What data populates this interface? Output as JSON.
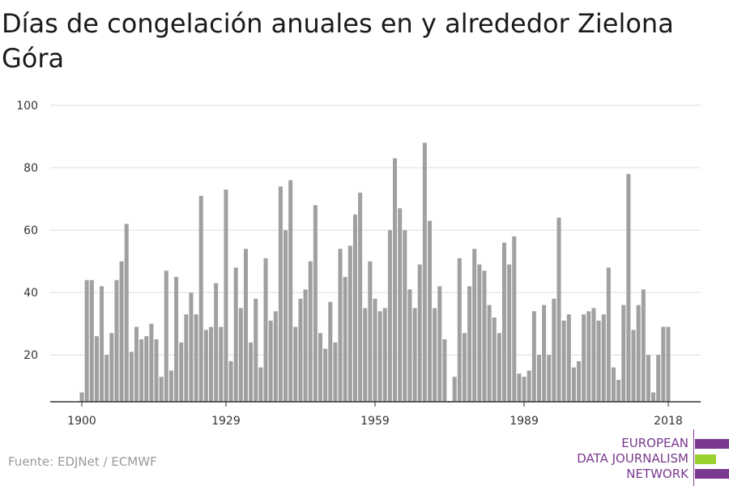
{
  "title": "Días de congelación anuales en y alrededor Zielona Góra",
  "source": "Fuente: EDJNet / ECMWF",
  "logo": {
    "lines": [
      "EUROPEAN",
      "DATA JOURNALISM",
      "NETWORK"
    ],
    "colors": {
      "text": "#7a3a8f",
      "purple": "#7a3a8f",
      "green": "#9bd12f"
    }
  },
  "chart_data": {
    "type": "bar",
    "title": "Días de congelación anuales en y alrededor Zielona Góra",
    "xlabel": "",
    "ylabel": "",
    "ylim": [
      5,
      100
    ],
    "yticks": [
      20,
      40,
      60,
      80,
      100
    ],
    "xticks": [
      1900,
      1929,
      1959,
      1989,
      2018
    ],
    "grid": true,
    "bar_color": "#a0a0a0",
    "x": [
      1900,
      1901,
      1902,
      1903,
      1904,
      1905,
      1906,
      1907,
      1908,
      1909,
      1910,
      1911,
      1912,
      1913,
      1914,
      1915,
      1916,
      1917,
      1918,
      1919,
      1920,
      1921,
      1922,
      1923,
      1924,
      1925,
      1926,
      1927,
      1928,
      1929,
      1930,
      1931,
      1932,
      1933,
      1934,
      1935,
      1936,
      1937,
      1938,
      1939,
      1940,
      1941,
      1942,
      1943,
      1944,
      1945,
      1946,
      1947,
      1948,
      1949,
      1950,
      1951,
      1952,
      1953,
      1954,
      1955,
      1956,
      1957,
      1958,
      1959,
      1960,
      1961,
      1962,
      1963,
      1964,
      1965,
      1966,
      1967,
      1968,
      1969,
      1970,
      1971,
      1972,
      1973,
      1974,
      1975,
      1976,
      1977,
      1978,
      1979,
      1980,
      1981,
      1982,
      1983,
      1984,
      1985,
      1986,
      1987,
      1988,
      1989,
      1990,
      1991,
      1992,
      1993,
      1994,
      1995,
      1996,
      1997,
      1998,
      1999,
      2000,
      2001,
      2002,
      2003,
      2004,
      2005,
      2006,
      2007,
      2008,
      2009,
      2010,
      2011,
      2012,
      2013,
      2014,
      2015,
      2016,
      2017,
      2018
    ],
    "values": [
      8,
      44,
      44,
      26,
      42,
      20,
      27,
      44,
      50,
      62,
      21,
      29,
      25,
      26,
      30,
      25,
      13,
      47,
      15,
      45,
      24,
      33,
      40,
      33,
      71,
      28,
      29,
      43,
      29,
      73,
      18,
      48,
      35,
      54,
      24,
      38,
      16,
      51,
      31,
      34,
      74,
      60,
      76,
      29,
      38,
      41,
      50,
      68,
      27,
      22,
      37,
      24,
      54,
      45,
      55,
      65,
      72,
      35,
      50,
      38,
      34,
      35,
      60,
      83,
      67,
      60,
      41,
      35,
      49,
      88,
      63,
      35,
      42,
      25,
      5,
      13,
      51,
      27,
      42,
      54,
      49,
      47,
      36,
      32,
      27,
      56,
      49,
      58,
      14,
      13,
      15,
      34,
      20,
      36,
      20,
      38,
      64,
      31,
      33,
      16,
      18,
      33,
      34,
      35,
      31,
      33,
      48,
      16,
      12,
      36,
      78,
      28,
      36,
      41,
      20,
      8,
      20,
      29,
      29
    ]
  }
}
